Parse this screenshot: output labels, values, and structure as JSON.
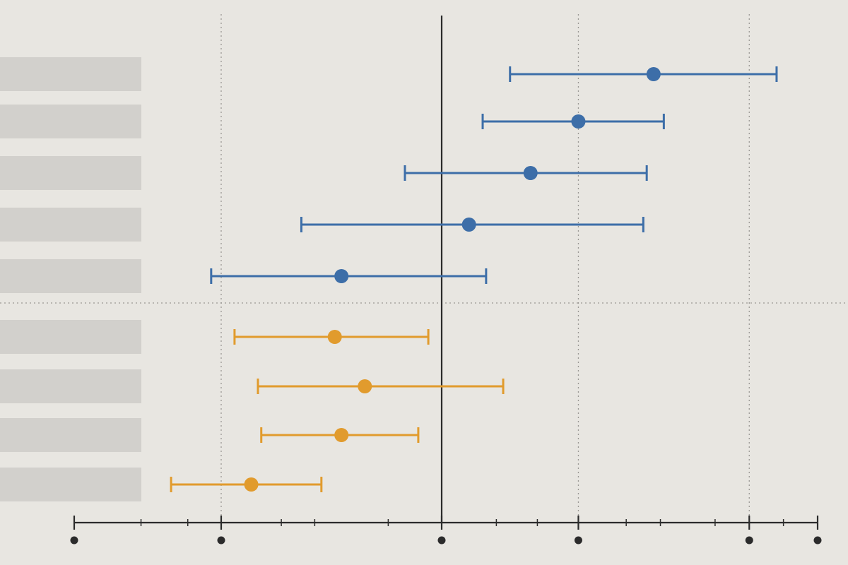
{
  "colors": {
    "background": "#e8e6e1",
    "label_placeholder": "#d2d0cc",
    "axis": "#2b2b2b",
    "grid": "#9a9894",
    "group_a": "#3d6ea8",
    "group_b": "#e19b2d"
  },
  "chart_data": {
    "type": "scatter",
    "style": "forest-plot",
    "x_axis": {
      "range": [
        -5.5,
        5.5
      ],
      "reference_line": 0,
      "major_ticks_with_dot": [
        -5.5,
        -3.3,
        0,
        2,
        4.5,
        5.5
      ],
      "minor_ticks": [
        -4.5,
        -3.8,
        -2.4,
        -1.9,
        -0.8,
        0.8,
        1.4,
        2.7,
        3.2,
        4.0,
        5.0
      ],
      "gridlines": [
        -3.3,
        2,
        4.5
      ],
      "tick_labels": []
    },
    "group_separator_after_row": 5,
    "series": [
      {
        "color_key": "group_a",
        "rows": [
          {
            "estimate": 3.1,
            "ci_low": 1.0,
            "ci_high": 4.9
          },
          {
            "estimate": 2.0,
            "ci_low": 0.6,
            "ci_high": 3.25
          },
          {
            "estimate": 1.3,
            "ci_low": -0.55,
            "ci_high": 3.0
          },
          {
            "estimate": 0.4,
            "ci_low": -2.1,
            "ci_high": 2.95
          },
          {
            "estimate": -1.5,
            "ci_low": -3.45,
            "ci_high": 0.65
          }
        ]
      },
      {
        "color_key": "group_b",
        "rows": [
          {
            "estimate": -1.6,
            "ci_low": -3.1,
            "ci_high": -0.2
          },
          {
            "estimate": -1.15,
            "ci_low": -2.75,
            "ci_high": 0.9
          },
          {
            "estimate": -1.5,
            "ci_low": -2.7,
            "ci_high": -0.35
          },
          {
            "estimate": -2.85,
            "ci_low": -4.05,
            "ci_high": -1.8
          }
        ]
      }
    ]
  }
}
